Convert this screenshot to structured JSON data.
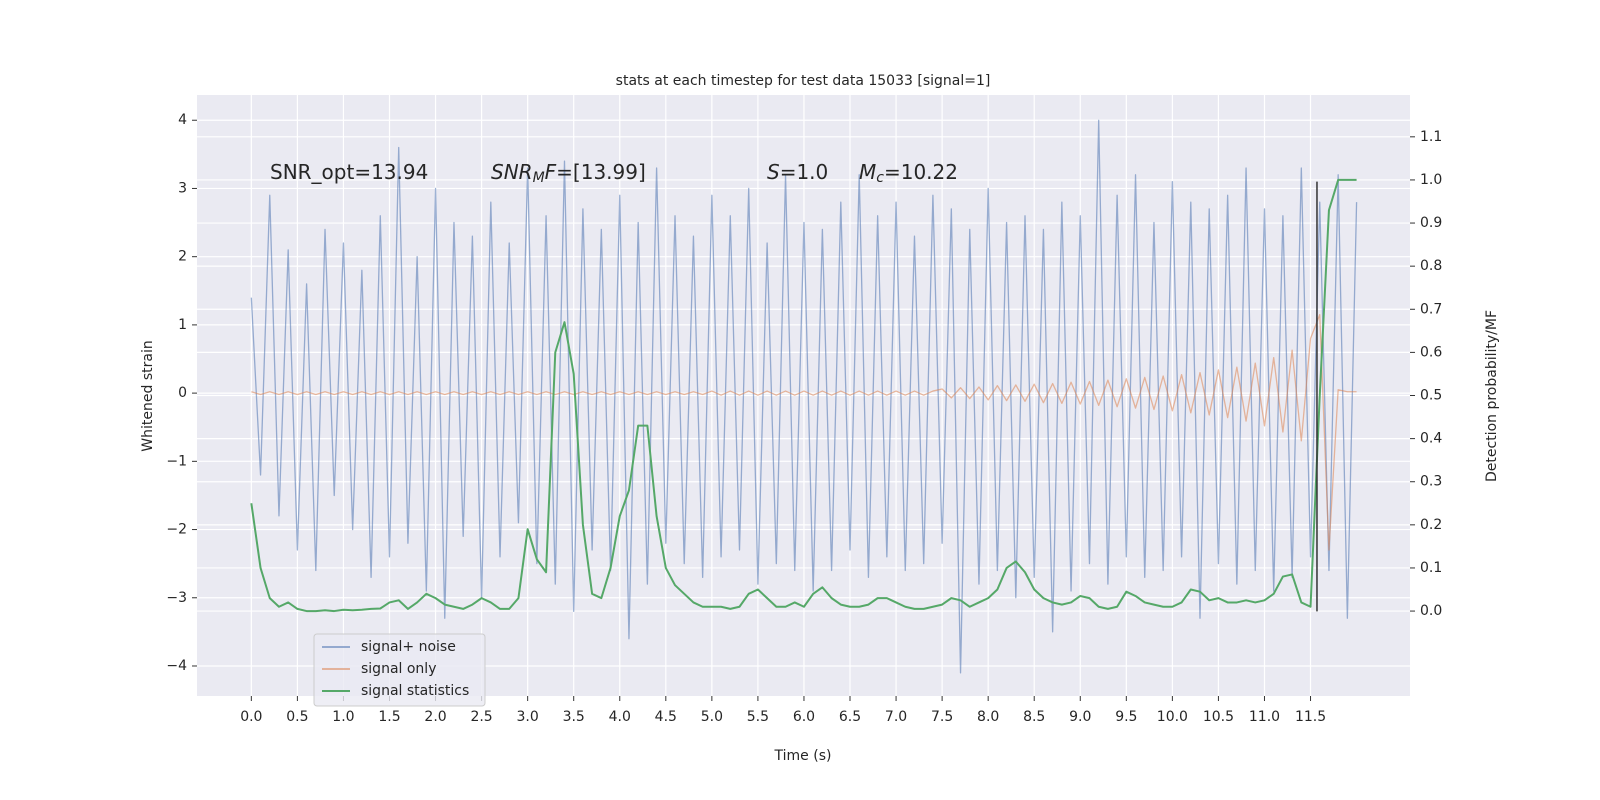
{
  "chart_data": {
    "type": "line",
    "title": "stats at each timestep for test data 15033 [signal=1]",
    "xlabel": "Time (s)",
    "ylabel": "Whitened strain",
    "y2label": "Detection probability/MF",
    "annotations": [
      {
        "parts": [
          {
            "text": "SNR_opt=13.94"
          }
        ]
      },
      {
        "parts": [
          {
            "text": "SNR",
            "italic": true
          },
          {
            "text": "M",
            "italic": true,
            "sub": true
          },
          {
            "text": "F",
            "italic": true
          },
          {
            "text": "=[13.99]"
          }
        ]
      },
      {
        "parts": [
          {
            "text": "S",
            "italic": true
          },
          {
            "text": "=1.0"
          }
        ]
      },
      {
        "parts": [
          {
            "text": "M",
            "italic": true
          },
          {
            "text": "c",
            "italic": true,
            "sub": true
          },
          {
            "text": "=10.22"
          }
        ]
      }
    ],
    "xlim": [
      -0.59,
      12.58
    ],
    "ylim": [
      -4.44,
      4.37
    ],
    "y2lim": [
      -0.197,
      1.197
    ],
    "xticks": [
      {
        "value": 0,
        "label": "0.0"
      },
      0.5,
      {
        "value": 1,
        "label": "1.0"
      },
      1.5,
      {
        "value": 2,
        "label": "2.0"
      },
      2.5,
      {
        "value": 3,
        "label": "3.0"
      },
      3.5,
      {
        "value": 4,
        "label": "4.0"
      },
      4.5,
      {
        "value": 5,
        "label": "5.0"
      },
      5.5,
      {
        "value": 6,
        "label": "6.0"
      },
      6.5,
      {
        "value": 7,
        "label": "7.0"
      },
      7.5,
      {
        "value": 8,
        "label": "8.0"
      },
      8.5,
      {
        "value": 9,
        "label": "9.0"
      },
      9.5,
      {
        "value": 10,
        "label": "10.0"
      },
      10.5,
      {
        "value": 11,
        "label": "11.0"
      },
      11.5
    ],
    "yticks": [
      {
        "value": -4,
        "label": "−4"
      },
      {
        "value": -3,
        "label": "−3"
      },
      {
        "value": -2,
        "label": "−2"
      },
      {
        "value": -1,
        "label": "−1"
      },
      0,
      1,
      2,
      3,
      4
    ],
    "y2ticks": [
      {
        "value": 0,
        "label": "0.0"
      },
      0.1,
      0.2,
      0.3,
      0.4,
      0.5,
      0.6,
      0.7,
      0.8,
      0.9,
      {
        "value": 1,
        "label": "1.0"
      },
      1.1
    ],
    "grid": true,
    "legend": "lower left",
    "x": [
      0,
      0.1,
      0.2,
      0.3,
      0.4,
      0.5,
      0.6,
      0.7,
      0.8,
      0.9,
      1,
      1.1,
      1.2,
      1.3,
      1.4,
      1.5,
      1.6,
      1.7,
      1.8,
      1.9,
      2,
      2.1,
      2.2,
      2.3,
      2.4,
      2.5,
      2.6,
      2.7,
      2.8,
      2.9,
      3,
      3.1,
      3.2,
      3.3,
      3.4,
      3.5,
      3.6,
      3.7,
      3.8,
      3.9,
      4,
      4.1,
      4.2,
      4.3,
      4.4,
      4.5,
      4.6,
      4.7,
      4.8,
      4.9,
      5,
      5.1,
      5.2,
      5.3,
      5.4,
      5.5,
      5.6,
      5.7,
      5.8,
      5.9,
      6,
      6.1,
      6.2,
      6.3,
      6.4,
      6.5,
      6.6,
      6.7,
      6.8,
      6.9,
      7,
      7.1,
      7.2,
      7.3,
      7.4,
      7.5,
      7.6,
      7.7,
      7.8,
      7.9,
      8,
      8.1,
      8.2,
      8.3,
      8.4,
      8.5,
      8.6,
      8.7,
      8.8,
      8.9,
      9,
      9.1,
      9.2,
      9.3,
      9.4,
      9.5,
      9.6,
      9.7,
      9.8,
      9.9,
      10,
      10.1,
      10.2,
      10.3,
      10.4,
      10.5,
      10.6,
      10.7,
      10.8,
      10.9,
      11,
      11.1,
      11.2,
      11.3,
      11.4,
      11.5,
      11.6,
      11.7,
      11.8,
      11.9,
      12
    ],
    "series": [
      {
        "name": "signal+ noise",
        "color": "#4c72b0",
        "alpha": 0.55,
        "values": [
          1.4,
          -1.2,
          2.9,
          -1.8,
          2.1,
          -2.3,
          1.6,
          -2.6,
          2.4,
          -1.5,
          2.2,
          -2.0,
          1.8,
          -2.7,
          2.6,
          -2.4,
          3.6,
          -2.2,
          2.0,
          -2.9,
          3.0,
          -3.3,
          2.5,
          -2.1,
          2.3,
          -3.0,
          2.8,
          -2.4,
          2.2,
          -1.9,
          3.3,
          -2.5,
          2.6,
          -2.8,
          3.4,
          -3.2,
          2.7,
          -2.3,
          2.4,
          -2.6,
          2.9,
          -3.6,
          2.5,
          -2.8,
          3.3,
          -2.2,
          2.6,
          -2.5,
          2.3,
          -2.7,
          2.9,
          -2.4,
          2.6,
          -2.3,
          3.0,
          -2.8,
          2.2,
          -2.5,
          3.2,
          -2.6,
          2.5,
          -2.9,
          2.4,
          -2.6,
          2.8,
          -2.3,
          3.2,
          -2.7,
          2.6,
          -2.4,
          2.8,
          -2.6,
          2.3,
          -2.5,
          2.9,
          -2.2,
          2.7,
          -4.1,
          2.4,
          -2.8,
          3.0,
          -2.6,
          2.5,
          -3.0,
          2.6,
          -2.7,
          2.4,
          -3.5,
          2.8,
          -2.9,
          2.6,
          -2.5,
          4.0,
          -2.8,
          2.9,
          -2.4,
          3.2,
          -2.7,
          2.5,
          -2.6,
          3.1,
          -2.4,
          2.8,
          -3.3,
          2.7,
          -2.5,
          2.9,
          -2.8,
          3.3,
          -2.6,
          2.7,
          -2.9,
          2.6,
          -2.7,
          3.3,
          -2.4,
          2.8,
          -2.6,
          3.2,
          -3.3,
          2.8
        ]
      },
      {
        "name": "signal only",
        "color": "#dd8452",
        "alpha": 0.55,
        "values": [
          0.02,
          -0.02,
          0.02,
          -0.02,
          0.02,
          -0.02,
          0.02,
          -0.02,
          0.02,
          -0.02,
          0.02,
          -0.02,
          0.02,
          -0.02,
          0.02,
          -0.02,
          0.02,
          -0.02,
          0.02,
          -0.02,
          0.02,
          -0.02,
          0.02,
          -0.02,
          0.02,
          -0.02,
          0.02,
          -0.02,
          0.02,
          -0.02,
          0.02,
          -0.02,
          0.02,
          -0.02,
          0.02,
          -0.02,
          0.02,
          -0.02,
          0.02,
          -0.02,
          0.02,
          -0.02,
          0.02,
          -0.02,
          0.02,
          -0.02,
          0.02,
          -0.02,
          0.02,
          -0.02,
          0.03,
          -0.03,
          0.03,
          -0.03,
          0.03,
          -0.03,
          0.03,
          -0.03,
          0.03,
          -0.03,
          0.03,
          -0.03,
          0.03,
          -0.03,
          0.03,
          -0.03,
          0.03,
          -0.03,
          0.03,
          -0.03,
          0.03,
          -0.03,
          0.03,
          -0.03,
          0.03,
          0.06,
          -0.07,
          0.08,
          -0.08,
          0.09,
          -0.1,
          0.11,
          -0.11,
          0.12,
          -0.12,
          0.13,
          -0.14,
          0.14,
          -0.15,
          0.16,
          -0.16,
          0.17,
          -0.18,
          0.19,
          -0.2,
          0.21,
          -0.22,
          0.23,
          -0.24,
          0.25,
          -0.26,
          0.27,
          -0.29,
          0.3,
          -0.32,
          0.34,
          -0.36,
          0.38,
          -0.41,
          0.44,
          -0.48,
          0.52,
          -0.57,
          0.63,
          -0.7,
          0.8,
          1.15,
          -2.3,
          0.05,
          0.02,
          0.02
        ]
      },
      {
        "name": "signal statistics",
        "color": "#55a868",
        "alpha": 1,
        "axis": "y2",
        "values": [
          0.25,
          0.1,
          0.03,
          0.01,
          0.02,
          0.005,
          0.0,
          0.0,
          0.002,
          0.0,
          0.003,
          0.002,
          0.003,
          0.005,
          0.006,
          0.02,
          0.025,
          0.005,
          0.02,
          0.04,
          0.03,
          0.015,
          0.01,
          0.005,
          0.015,
          0.03,
          0.02,
          0.005,
          0.005,
          0.03,
          0.19,
          0.12,
          0.09,
          0.6,
          0.67,
          0.55,
          0.2,
          0.04,
          0.03,
          0.1,
          0.22,
          0.28,
          0.43,
          0.43,
          0.22,
          0.1,
          0.06,
          0.04,
          0.02,
          0.01,
          0.01,
          0.01,
          0.005,
          0.01,
          0.04,
          0.05,
          0.03,
          0.01,
          0.01,
          0.02,
          0.01,
          0.04,
          0.055,
          0.03,
          0.015,
          0.01,
          0.01,
          0.015,
          0.03,
          0.03,
          0.02,
          0.01,
          0.005,
          0.005,
          0.01,
          0.015,
          0.03,
          0.025,
          0.01,
          0.02,
          0.03,
          0.05,
          0.1,
          0.115,
          0.09,
          0.05,
          0.03,
          0.02,
          0.015,
          0.02,
          0.035,
          0.03,
          0.01,
          0.005,
          0.01,
          0.045,
          0.035,
          0.02,
          0.015,
          0.01,
          0.01,
          0.02,
          0.05,
          0.045,
          0.025,
          0.03,
          0.02,
          0.02,
          0.025,
          0.02,
          0.025,
          0.04,
          0.08,
          0.085,
          0.02,
          0.01,
          0.5,
          0.93,
          1.0,
          1.0,
          1.0
        ]
      }
    ],
    "vline": {
      "x": 11.57,
      "ymin": -3.2,
      "ymax": 3.1,
      "color": "#333333"
    }
  }
}
